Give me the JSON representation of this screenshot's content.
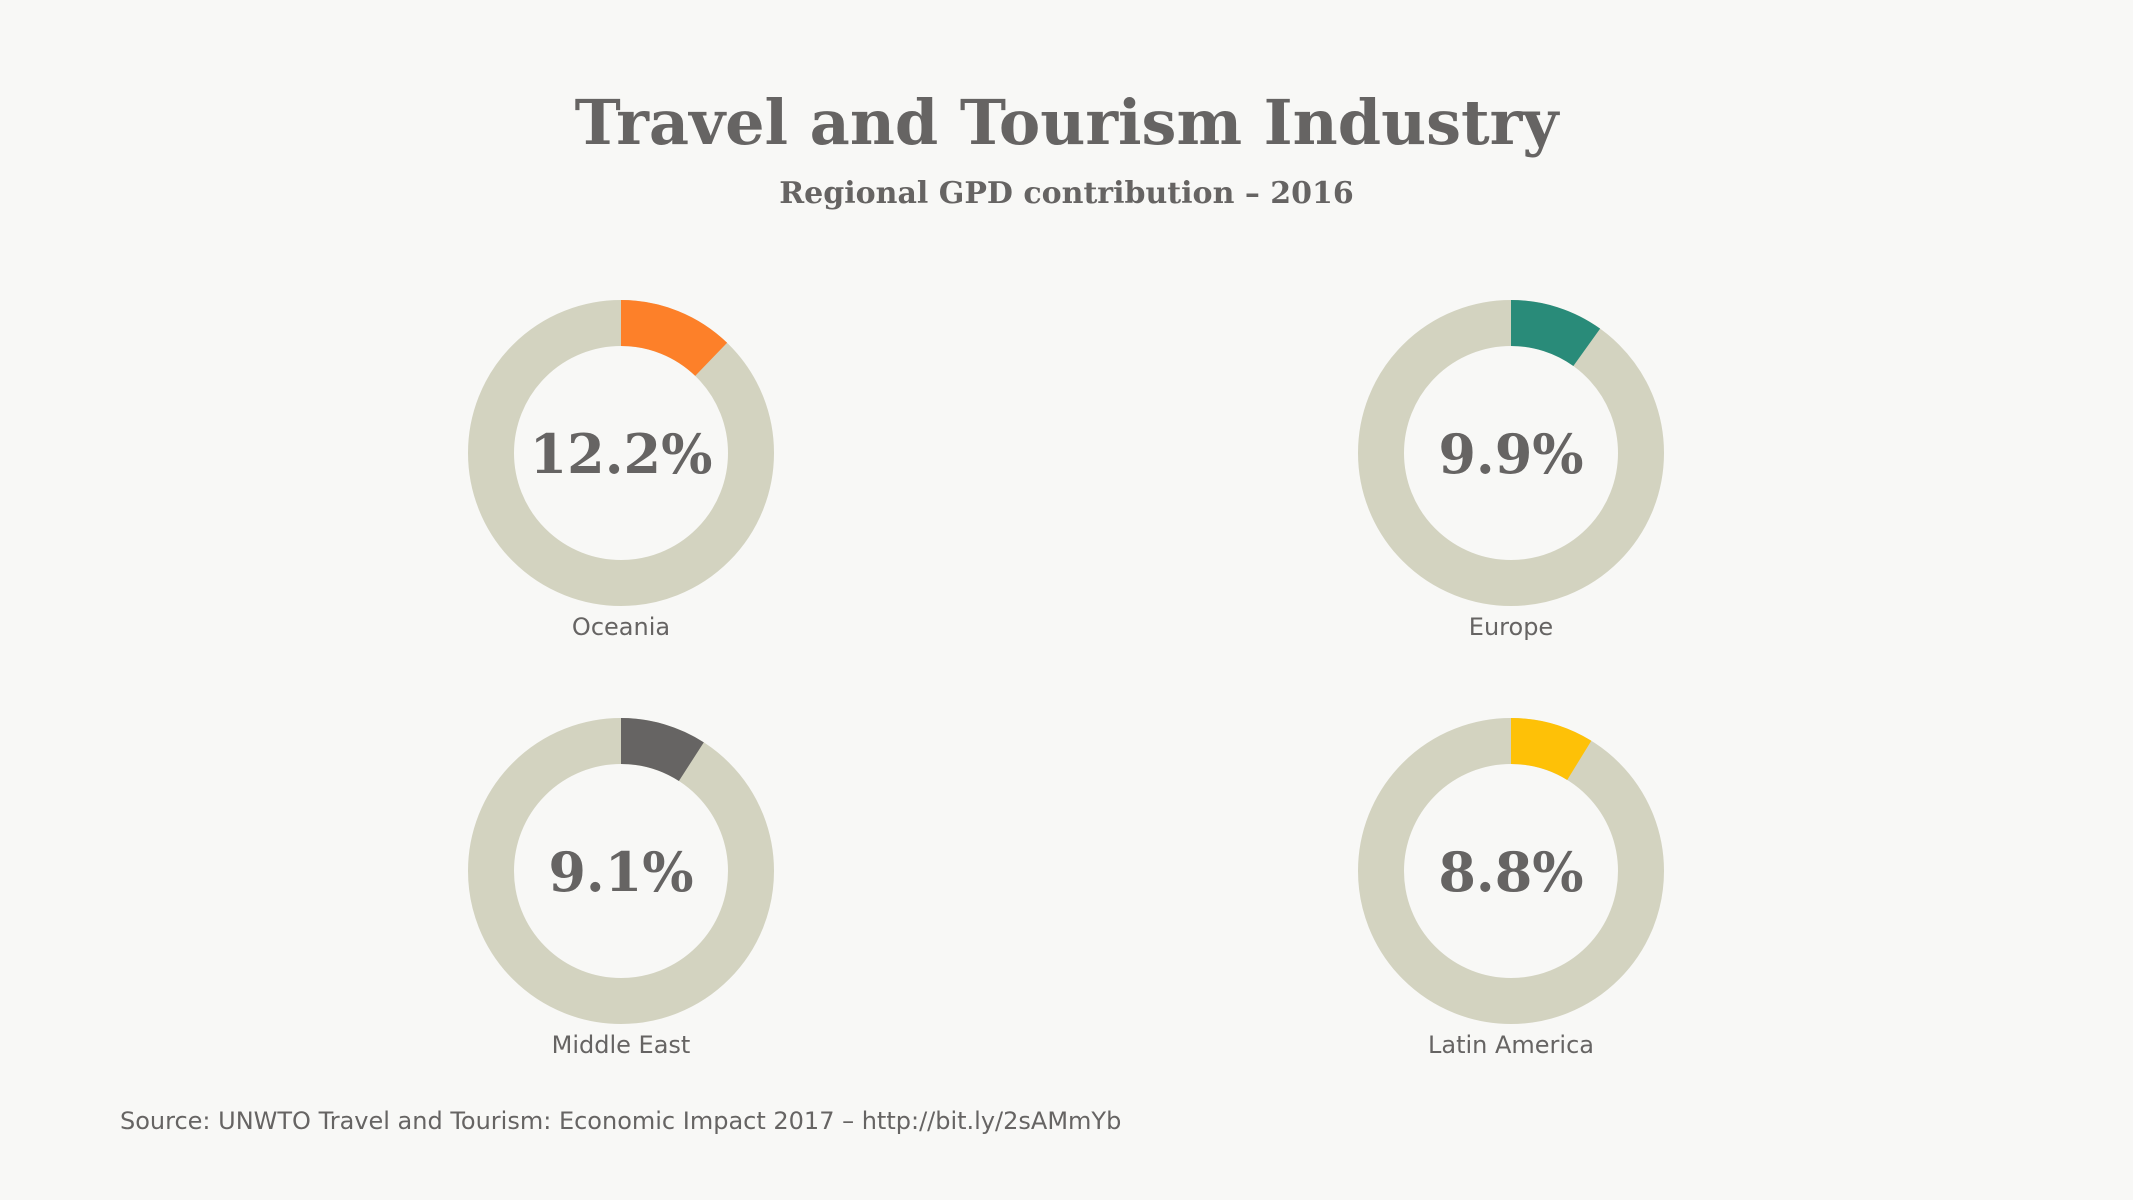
{
  "title": "Travel and Tourism Industry",
  "subtitle": "Regional GPD contribution – 2016",
  "source": "Source: UNWTO Travel and Tourism: Economic Impact 2017 – http://bit.ly/2sAMmYb",
  "colors": {
    "background": "#f8f8f6",
    "track": "#d3d3c0",
    "text": "#666463"
  },
  "chart_data": [
    {
      "type": "pie",
      "variant": "donut",
      "category": "Oceania",
      "value": 12.2,
      "label": "12.2%",
      "color": "#fd8029"
    },
    {
      "type": "pie",
      "variant": "donut",
      "category": "Europe",
      "value": 9.9,
      "label": "9.9%",
      "color": "#298b79"
    },
    {
      "type": "pie",
      "variant": "donut",
      "category": "Middle East",
      "value": 9.1,
      "label": "9.1%",
      "color": "#666463"
    },
    {
      "type": "pie",
      "variant": "donut",
      "category": "Latin America",
      "value": 8.8,
      "label": "8.8%",
      "color": "#fec107"
    }
  ]
}
